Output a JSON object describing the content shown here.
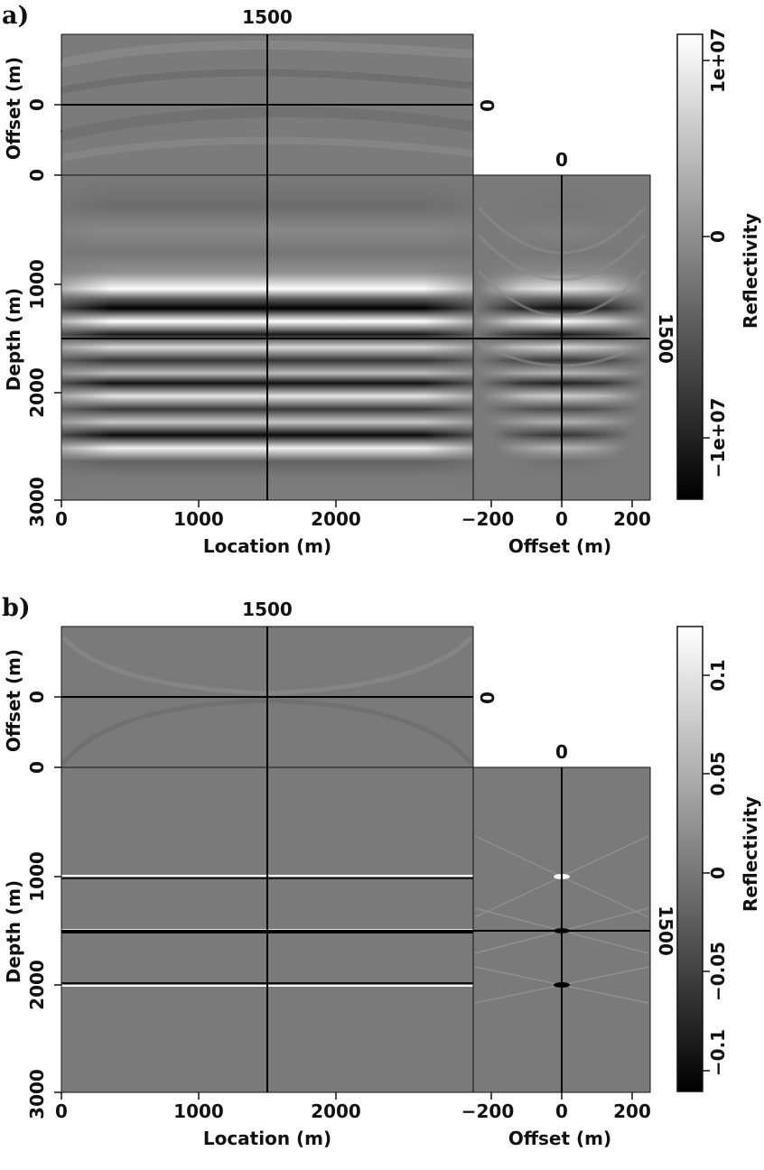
{
  "figures": [
    {
      "label": "a)",
      "cross_location": "1500",
      "cross_offset": "0",
      "cross_depth": "1500",
      "offset_top_ticks": [
        "0",
        "0"
      ],
      "offset_top_title": "Offset (m)",
      "depth_ticks": [
        "1000",
        "2000",
        "3000"
      ],
      "depth_title": "Depth (m)",
      "location_ticks": [
        "0",
        "1000",
        "2000"
      ],
      "location_title": "Location (m)",
      "offset_ticks": [
        "-200",
        "0",
        "200"
      ],
      "offset_title": "Offset (m)",
      "colorbar_ticks": [
        "1e+07",
        "0",
        "-1e+07"
      ],
      "colorbar_title": "Reflectivity"
    },
    {
      "label": "b)",
      "cross_location": "1500",
      "cross_offset": "0",
      "cross_depth": "1500",
      "offset_top_ticks": [
        "0",
        "0"
      ],
      "offset_top_title": "Offset (m)",
      "depth_ticks": [
        "1000",
        "2000",
        "3000"
      ],
      "depth_title": "Depth (m)",
      "location_ticks": [
        "0",
        "1000",
        "2000"
      ],
      "location_title": "Location (m)",
      "offset_ticks": [
        "-200",
        "0",
        "200"
      ],
      "offset_title": "Offset (m)",
      "colorbar_ticks": [
        "0.1",
        "0.05",
        "0",
        "-0.05",
        "-0.1"
      ],
      "colorbar_title": "Reflectivity"
    }
  ],
  "colors": {
    "background": "#ffffff",
    "ink": "#111111",
    "section_gray": "#7a7a7a"
  }
}
